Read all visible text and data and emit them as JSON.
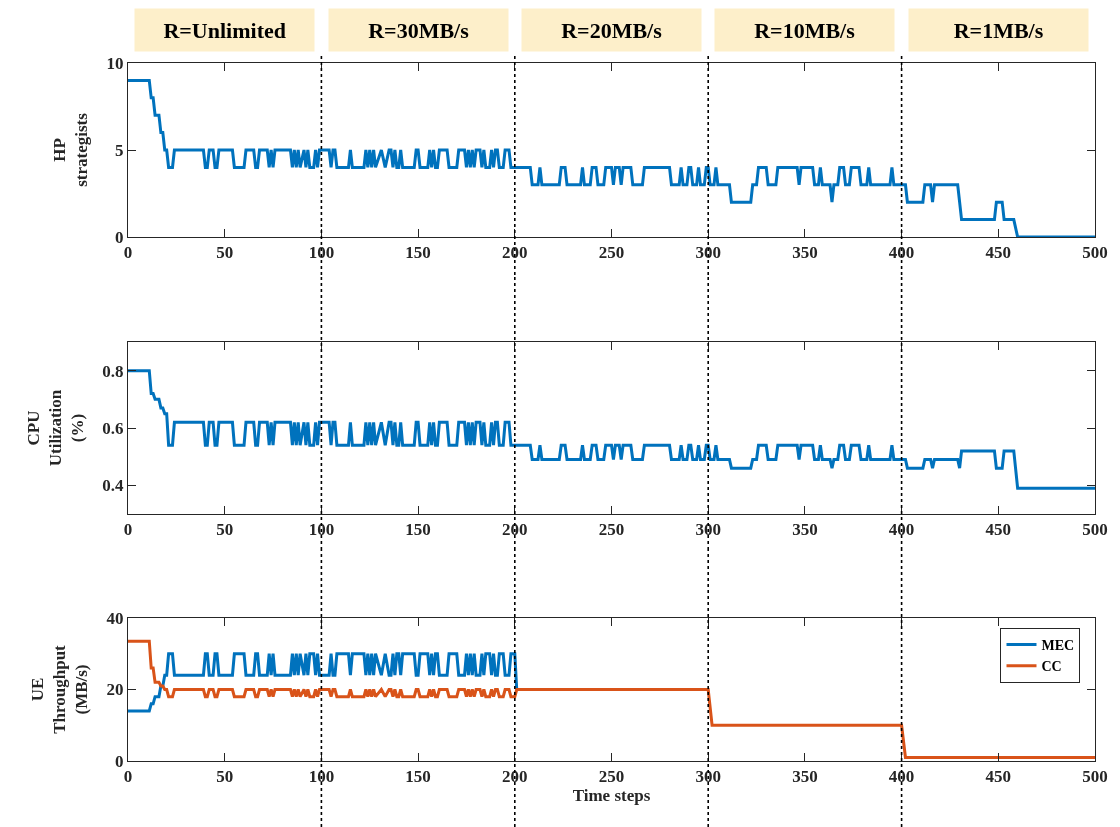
{
  "chart_data": [
    {
      "type": "line",
      "ylabel": "HP\nstrategists",
      "xlim": [
        0,
        500
      ],
      "xticks": [
        0,
        50,
        100,
        150,
        200,
        250,
        300,
        350,
        400,
        450,
        500
      ],
      "ylim": [
        0,
        10
      ],
      "yticks": [
        0,
        5,
        10
      ],
      "x": [
        0,
        11,
        12,
        13,
        14,
        16,
        17,
        18,
        19,
        20,
        21,
        23,
        24,
        39,
        40,
        41,
        42,
        44,
        45,
        46,
        47,
        54,
        55,
        60,
        61,
        65,
        66,
        67,
        68,
        72,
        73,
        74,
        75,
        76,
        84,
        85,
        86,
        87,
        88,
        89,
        91,
        92,
        93,
        94,
        96,
        97,
        98,
        99,
        104,
        105,
        106,
        107,
        108,
        114,
        115,
        116,
        122,
        123,
        124,
        125,
        126,
        127,
        128,
        131,
        133,
        135,
        136,
        137,
        138,
        139,
        140,
        141,
        142,
        148,
        149,
        150,
        151,
        155,
        156,
        157,
        158,
        159,
        160,
        161,
        165,
        166,
        170,
        171,
        174,
        175,
        176,
        177,
        178,
        179,
        180,
        182,
        183,
        184,
        185,
        187,
        188,
        189,
        190,
        191,
        192,
        194,
        195,
        197,
        198,
        200,
        208,
        209,
        212,
        213,
        214,
        223,
        224,
        226,
        227,
        234,
        235,
        236,
        239,
        240,
        242,
        243,
        246,
        247,
        250,
        251,
        252,
        254,
        255,
        256,
        260,
        261,
        266,
        267,
        280,
        281,
        285,
        286,
        287,
        289,
        290,
        291,
        292,
        294,
        295,
        296,
        298,
        299,
        300,
        301,
        303,
        304,
        305,
        311,
        312,
        322,
        323,
        325,
        326,
        330,
        331,
        335,
        336,
        346,
        347,
        348,
        354,
        355,
        357,
        358,
        359,
        363,
        364,
        365,
        367,
        368,
        370,
        371,
        373,
        374,
        378,
        379,
        382,
        383,
        384,
        394,
        395,
        396,
        402,
        403,
        411,
        412,
        415,
        416,
        417,
        429,
        430,
        431,
        448,
        449,
        452,
        453,
        458,
        460,
        500
      ],
      "series": [
        {
          "color": "#0072bd",
          "values": [
            9,
            9,
            8,
            8,
            7,
            7,
            6,
            6,
            5,
            5,
            4,
            4,
            5,
            5,
            4,
            4,
            5,
            5,
            4,
            4,
            5,
            5,
            4,
            4,
            5,
            5,
            4,
            4,
            5,
            5,
            4,
            5,
            4,
            5,
            5,
            4,
            5,
            4,
            5,
            4,
            5,
            4,
            5,
            4,
            4,
            5,
            4,
            5,
            5,
            4,
            5,
            5,
            4,
            4,
            5,
            4,
            4,
            5,
            4,
            5,
            4,
            5,
            4,
            5,
            4,
            5,
            5,
            4,
            5,
            4,
            4,
            5,
            4,
            4,
            5,
            5,
            4,
            4,
            5,
            4,
            5,
            4,
            4,
            5,
            5,
            4,
            4,
            5,
            5,
            4,
            5,
            4,
            5,
            4,
            5,
            5,
            4,
            5,
            4,
            4,
            5,
            4,
            5,
            5,
            4,
            4,
            5,
            5,
            4,
            4,
            4,
            3,
            3,
            4,
            3,
            3,
            4,
            4,
            3,
            3,
            4,
            3,
            3,
            4,
            4,
            3,
            3,
            4,
            4,
            3,
            4,
            4,
            3,
            4,
            4,
            3,
            3,
            4,
            4,
            3,
            3,
            4,
            3,
            3,
            4,
            4,
            3,
            3,
            4,
            3,
            3,
            4,
            4,
            3,
            3,
            4,
            3,
            3,
            2,
            2,
            3,
            3,
            4,
            4,
            3,
            3,
            4,
            4,
            3,
            4,
            4,
            3,
            3,
            4,
            3,
            3,
            2,
            3,
            3,
            4,
            4,
            3,
            3,
            4,
            4,
            3,
            3,
            4,
            3,
            3,
            4,
            3,
            3,
            2,
            2,
            3,
            3,
            2,
            3,
            3,
            2,
            1,
            1,
            2,
            2,
            1,
            1,
            0,
            0
          ]
        }
      ],
      "ref_lines": [
        {
          "axis": "x",
          "value": 100,
          "line_style": "dotted",
          "color": "#000000"
        },
        {
          "axis": "x",
          "value": 200,
          "line_style": "dotted",
          "color": "#000000"
        },
        {
          "axis": "x",
          "value": 300,
          "line_style": "dotted",
          "color": "#000000"
        },
        {
          "axis": "x",
          "value": 400,
          "line_style": "dotted",
          "color": "#000000"
        }
      ],
      "annotations": [
        "R=Unlimited",
        "R=30MB/s",
        "R=20MB/s",
        "R=10MB/s",
        "R=1MB/s"
      ]
    },
    {
      "type": "line",
      "ylabel": "CPU\nUtilization\n(%)",
      "xlim": [
        0,
        500
      ],
      "xticks": [
        0,
        50,
        100,
        150,
        200,
        250,
        300,
        350,
        400,
        450,
        500
      ],
      "ylim": [
        0.3,
        0.9
      ],
      "yticks": [
        0.4,
        0.6,
        0.8
      ],
      "x": [
        0,
        11,
        12,
        13,
        14,
        16,
        17,
        18,
        19,
        20,
        21,
        23,
        24,
        39,
        40,
        41,
        42,
        44,
        45,
        46,
        47,
        54,
        55,
        60,
        61,
        65,
        66,
        67,
        68,
        72,
        73,
        74,
        75,
        76,
        84,
        85,
        86,
        87,
        88,
        89,
        91,
        92,
        93,
        94,
        96,
        97,
        98,
        99,
        104,
        105,
        106,
        107,
        108,
        114,
        115,
        116,
        122,
        123,
        124,
        125,
        126,
        127,
        128,
        131,
        133,
        135,
        136,
        137,
        138,
        139,
        140,
        141,
        142,
        148,
        149,
        150,
        151,
        155,
        156,
        157,
        158,
        159,
        160,
        161,
        165,
        166,
        170,
        171,
        174,
        175,
        176,
        177,
        178,
        179,
        180,
        182,
        183,
        184,
        185,
        187,
        188,
        189,
        190,
        191,
        192,
        194,
        195,
        197,
        198,
        200,
        208,
        209,
        212,
        213,
        214,
        223,
        224,
        226,
        227,
        234,
        235,
        236,
        239,
        240,
        242,
        243,
        246,
        247,
        250,
        251,
        252,
        254,
        255,
        256,
        260,
        261,
        266,
        267,
        280,
        281,
        285,
        286,
        287,
        289,
        290,
        291,
        292,
        294,
        295,
        296,
        298,
        299,
        300,
        301,
        303,
        304,
        305,
        311,
        312,
        322,
        323,
        325,
        326,
        330,
        331,
        335,
        336,
        346,
        347,
        348,
        354,
        355,
        357,
        358,
        359,
        363,
        364,
        365,
        367,
        368,
        370,
        371,
        373,
        374,
        378,
        379,
        382,
        383,
        384,
        394,
        395,
        396,
        402,
        403,
        411,
        412,
        415,
        416,
        417,
        429,
        430,
        431,
        448,
        449,
        452,
        453,
        458,
        460,
        500
      ],
      "series": [
        {
          "color": "#0072bd",
          "values": [
            0.8,
            0.8,
            0.72,
            0.72,
            0.7,
            0.7,
            0.67,
            0.67,
            0.65,
            0.65,
            0.54,
            0.54,
            0.62,
            0.62,
            0.54,
            0.54,
            0.62,
            0.62,
            0.54,
            0.54,
            0.62,
            0.62,
            0.54,
            0.54,
            0.62,
            0.62,
            0.54,
            0.54,
            0.62,
            0.62,
            0.54,
            0.62,
            0.54,
            0.62,
            0.62,
            0.54,
            0.62,
            0.54,
            0.62,
            0.54,
            0.62,
            0.54,
            0.62,
            0.54,
            0.54,
            0.62,
            0.54,
            0.62,
            0.62,
            0.54,
            0.62,
            0.62,
            0.54,
            0.54,
            0.62,
            0.54,
            0.54,
            0.62,
            0.54,
            0.62,
            0.54,
            0.62,
            0.54,
            0.62,
            0.54,
            0.62,
            0.62,
            0.54,
            0.62,
            0.54,
            0.54,
            0.62,
            0.54,
            0.54,
            0.62,
            0.62,
            0.54,
            0.54,
            0.62,
            0.54,
            0.62,
            0.54,
            0.54,
            0.62,
            0.62,
            0.54,
            0.54,
            0.62,
            0.62,
            0.54,
            0.62,
            0.54,
            0.62,
            0.54,
            0.62,
            0.62,
            0.54,
            0.62,
            0.54,
            0.54,
            0.62,
            0.54,
            0.62,
            0.62,
            0.54,
            0.54,
            0.62,
            0.62,
            0.54,
            0.54,
            0.54,
            0.49,
            0.49,
            0.54,
            0.49,
            0.49,
            0.54,
            0.54,
            0.49,
            0.49,
            0.54,
            0.49,
            0.49,
            0.54,
            0.54,
            0.49,
            0.49,
            0.54,
            0.54,
            0.49,
            0.54,
            0.54,
            0.49,
            0.54,
            0.54,
            0.49,
            0.49,
            0.54,
            0.54,
            0.49,
            0.49,
            0.54,
            0.49,
            0.49,
            0.54,
            0.54,
            0.49,
            0.49,
            0.54,
            0.49,
            0.49,
            0.54,
            0.54,
            0.49,
            0.49,
            0.54,
            0.49,
            0.49,
            0.46,
            0.46,
            0.49,
            0.49,
            0.54,
            0.54,
            0.49,
            0.49,
            0.54,
            0.54,
            0.49,
            0.54,
            0.54,
            0.49,
            0.49,
            0.54,
            0.49,
            0.49,
            0.46,
            0.49,
            0.49,
            0.54,
            0.54,
            0.49,
            0.49,
            0.54,
            0.54,
            0.49,
            0.49,
            0.54,
            0.49,
            0.49,
            0.54,
            0.49,
            0.49,
            0.46,
            0.46,
            0.49,
            0.49,
            0.46,
            0.49,
            0.49,
            0.46,
            0.52,
            0.52,
            0.46,
            0.46,
            0.52,
            0.52,
            0.39,
            0.39
          ]
        }
      ],
      "ref_lines": [
        {
          "axis": "x",
          "value": 100,
          "line_style": "dotted",
          "color": "#000000"
        },
        {
          "axis": "x",
          "value": 200,
          "line_style": "dotted",
          "color": "#000000"
        },
        {
          "axis": "x",
          "value": 300,
          "line_style": "dotted",
          "color": "#000000"
        },
        {
          "axis": "x",
          "value": 400,
          "line_style": "dotted",
          "color": "#000000"
        }
      ]
    },
    {
      "type": "line",
      "ylabel": "UE\nThroughput\n(MB/s)",
      "xlabel": "Time steps",
      "xlim": [
        0,
        500
      ],
      "xticks": [
        0,
        50,
        100,
        150,
        200,
        250,
        300,
        350,
        400,
        450,
        500
      ],
      "ylim": [
        0,
        40
      ],
      "yticks": [
        0,
        20,
        40
      ],
      "legend": "top right",
      "series": [
        {
          "name": "MEC",
          "color": "#0072bd",
          "x": [
            0,
            11,
            12,
            13,
            14,
            16,
            17,
            18,
            19,
            20,
            21,
            23,
            24,
            39,
            40,
            41,
            42,
            44,
            45,
            46,
            47,
            54,
            55,
            60,
            61,
            65,
            66,
            67,
            68,
            72,
            73,
            74,
            75,
            76,
            84,
            85,
            86,
            87,
            88,
            89,
            91,
            92,
            93,
            94,
            96,
            97,
            98,
            99,
            104,
            105,
            106,
            107,
            108,
            114,
            115,
            116,
            122,
            123,
            124,
            125,
            126,
            127,
            128,
            131,
            133,
            135,
            136,
            137,
            138,
            139,
            140,
            141,
            142,
            148,
            149,
            150,
            151,
            155,
            156,
            157,
            158,
            159,
            160,
            161,
            165,
            166,
            170,
            171,
            174,
            175,
            176,
            177,
            178,
            179,
            180,
            182,
            183,
            184,
            185,
            187,
            188,
            189,
            190,
            191,
            192,
            194,
            195,
            197,
            198,
            200,
            201
          ],
          "values": [
            14,
            14,
            16,
            16,
            18,
            18,
            21,
            21,
            24,
            24,
            30,
            30,
            24,
            24,
            30,
            30,
            24,
            24,
            30,
            30,
            24,
            24,
            30,
            30,
            24,
            24,
            30,
            30,
            24,
            24,
            30,
            24,
            30,
            24,
            24,
            30,
            24,
            30,
            24,
            30,
            24,
            30,
            24,
            30,
            30,
            24,
            30,
            24,
            24,
            30,
            24,
            24,
            30,
            30,
            24,
            30,
            30,
            24,
            30,
            24,
            30,
            24,
            30,
            24,
            30,
            24,
            24,
            30,
            24,
            30,
            30,
            24,
            30,
            30,
            24,
            24,
            30,
            30,
            24,
            30,
            24,
            30,
            30,
            24,
            24,
            30,
            30,
            24,
            24,
            30,
            24,
            30,
            24,
            30,
            24,
            24,
            30,
            24,
            30,
            30,
            24,
            30,
            24,
            24,
            30,
            30,
            24,
            24,
            30,
            30,
            20
          ]
        },
        {
          "name": "CC",
          "color": "#d95319",
          "x": [
            0,
            11,
            12,
            13,
            14,
            16,
            17,
            18,
            19,
            20,
            21,
            23,
            24,
            39,
            40,
            41,
            42,
            44,
            45,
            46,
            47,
            54,
            55,
            60,
            61,
            65,
            66,
            67,
            68,
            72,
            73,
            74,
            75,
            76,
            84,
            85,
            86,
            87,
            88,
            89,
            91,
            92,
            93,
            94,
            96,
            97,
            98,
            99,
            104,
            105,
            106,
            107,
            108,
            114,
            115,
            116,
            122,
            123,
            124,
            125,
            126,
            127,
            128,
            131,
            133,
            135,
            136,
            137,
            138,
            139,
            140,
            141,
            142,
            148,
            149,
            150,
            151,
            155,
            156,
            157,
            158,
            159,
            160,
            161,
            165,
            166,
            170,
            171,
            174,
            175,
            176,
            177,
            178,
            179,
            180,
            182,
            183,
            184,
            185,
            187,
            188,
            189,
            190,
            191,
            192,
            194,
            195,
            197,
            198,
            200,
            201,
            300,
            302,
            400,
            402,
            500
          ],
          "values": [
            33.5,
            33.5,
            26,
            26,
            22,
            22,
            21,
            21,
            20,
            20,
            18,
            18,
            20,
            20,
            18,
            18,
            20,
            20,
            18,
            18,
            20,
            20,
            18,
            18,
            20,
            20,
            18,
            18,
            20,
            20,
            18,
            20,
            18,
            20,
            20,
            18,
            20,
            18,
            20,
            18,
            20,
            18,
            20,
            18,
            18,
            20,
            18,
            20,
            20,
            18,
            20,
            20,
            18,
            18,
            20,
            18,
            18,
            20,
            18,
            20,
            18,
            20,
            18,
            20,
            18,
            20,
            20,
            18,
            20,
            18,
            18,
            20,
            18,
            18,
            20,
            20,
            18,
            18,
            20,
            18,
            20,
            18,
            18,
            20,
            20,
            18,
            18,
            20,
            20,
            18,
            20,
            18,
            20,
            18,
            20,
            20,
            18,
            20,
            18,
            18,
            20,
            18,
            20,
            20,
            18,
            18,
            20,
            20,
            18,
            18,
            20,
            20,
            10,
            10,
            1,
            1
          ]
        }
      ],
      "ref_lines": [
        {
          "axis": "x",
          "value": 100,
          "line_style": "dotted",
          "color": "#000000"
        },
        {
          "axis": "x",
          "value": 200,
          "line_style": "dotted",
          "color": "#000000"
        },
        {
          "axis": "x",
          "value": 300,
          "line_style": "dotted",
          "color": "#000000"
        },
        {
          "axis": "x",
          "value": 400,
          "line_style": "dotted",
          "color": "#000000"
        }
      ]
    }
  ]
}
